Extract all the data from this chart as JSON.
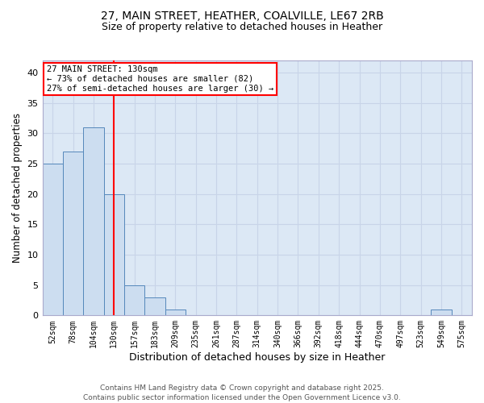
{
  "title_line1": "27, MAIN STREET, HEATHER, COALVILLE, LE67 2RB",
  "title_line2": "Size of property relative to detached houses in Heather",
  "xlabel": "Distribution of detached houses by size in Heather",
  "ylabel": "Number of detached properties",
  "categories": [
    "52sqm",
    "78sqm",
    "104sqm",
    "130sqm",
    "157sqm",
    "183sqm",
    "209sqm",
    "235sqm",
    "261sqm",
    "287sqm",
    "314sqm",
    "340sqm",
    "366sqm",
    "392sqm",
    "418sqm",
    "444sqm",
    "470sqm",
    "497sqm",
    "523sqm",
    "549sqm",
    "575sqm"
  ],
  "values": [
    25,
    27,
    31,
    20,
    5,
    3,
    1,
    0,
    0,
    0,
    0,
    0,
    0,
    0,
    0,
    0,
    0,
    0,
    0,
    1,
    0
  ],
  "bar_color": "#ccddf0",
  "bar_edge_color": "#5588bb",
  "vline_x": 3,
  "vline_color": "red",
  "ylim": [
    0,
    42
  ],
  "yticks": [
    0,
    5,
    10,
    15,
    20,
    25,
    30,
    35,
    40
  ],
  "annotation_text": "27 MAIN STREET: 130sqm\n← 73% of detached houses are smaller (82)\n27% of semi-detached houses are larger (30) →",
  "annotation_box_facecolor": "white",
  "annotation_box_edgecolor": "red",
  "footer_line1": "Contains HM Land Registry data © Crown copyright and database right 2025.",
  "footer_line2": "Contains public sector information licensed under the Open Government Licence v3.0.",
  "grid_color": "#c8d4e8",
  "background_color": "#dce8f5",
  "title1_fontsize": 10,
  "title2_fontsize": 9,
  "xlabel_fontsize": 9,
  "ylabel_fontsize": 8.5,
  "tick_fontsize": 7,
  "footer_fontsize": 6.5
}
